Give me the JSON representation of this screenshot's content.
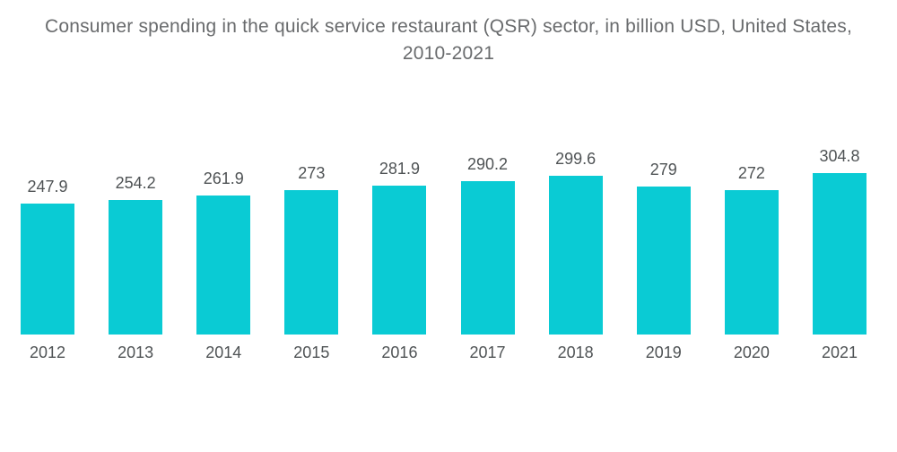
{
  "page": {
    "background_color": "#ffffff"
  },
  "chart_data": {
    "type": "bar",
    "title": "Consumer spending in the quick service restaurant (QSR) sector, in billion USD, United States, 2010-2021",
    "categories": [
      "2012",
      "2013",
      "2014",
      "2015",
      "2016",
      "2017",
      "2018",
      "2019",
      "2020",
      "2021"
    ],
    "values": [
      247.9,
      254.2,
      261.9,
      273,
      281.9,
      290.2,
      299.6,
      279,
      272,
      304.8
    ],
    "value_labels": [
      "247.9",
      "254.2",
      "261.9",
      "273",
      "281.9",
      "290.2",
      "299.6",
      "279",
      "272",
      "304.8"
    ],
    "xlabel": "",
    "ylabel": "",
    "ylim": [
      0,
      304.8
    ],
    "grid": false,
    "legend": false,
    "axes_visible": false,
    "data_labels_position": "above-bars",
    "bar_color": "#0acbd4",
    "value_label_color": "#4f5355",
    "year_label_color": "#4f5355",
    "title_color": "#696b6d"
  }
}
